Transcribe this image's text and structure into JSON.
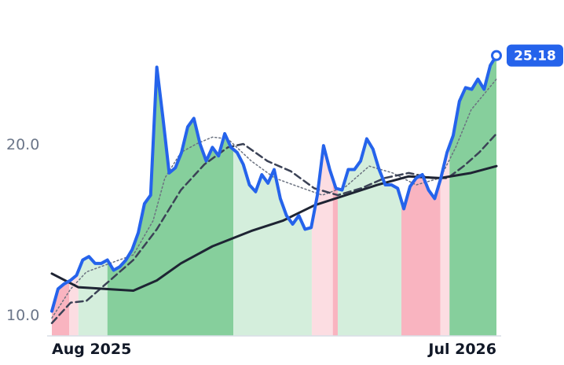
{
  "chart_data": {
    "type": "line",
    "xlim": [
      0,
      72
    ],
    "ylim": [
      8.75,
      26.5
    ],
    "yticks": [
      {
        "value": 10,
        "label": "10.0"
      },
      {
        "value": 20,
        "label": "20.0"
      }
    ],
    "xticks": [
      {
        "value": 0,
        "label": "Aug 2025"
      },
      {
        "value": 72,
        "label": "Jul 2026"
      }
    ],
    "grid": false,
    "regions": [
      {
        "from": 0,
        "to": 2.8,
        "color": "#f9b4c0"
      },
      {
        "from": 2.8,
        "to": 4.3,
        "color": "#fcdde2"
      },
      {
        "from": 4.3,
        "to": 9,
        "color": "#d4eedc"
      },
      {
        "from": 9,
        "to": 29.4,
        "color": "#86cf9c"
      },
      {
        "from": 29.4,
        "to": 42.1,
        "color": "#d4eedc"
      },
      {
        "from": 42.1,
        "to": 45.5,
        "color": "#fcdde2"
      },
      {
        "from": 45.5,
        "to": 46.3,
        "color": "#f9b4c0"
      },
      {
        "from": 46.3,
        "to": 56.6,
        "color": "#d4eedc"
      },
      {
        "from": 56.6,
        "to": 62.9,
        "color": "#f9b4c0"
      },
      {
        "from": 62.9,
        "to": 64.4,
        "color": "#fcdde2"
      },
      {
        "from": 64.4,
        "to": 72,
        "color": "#86cf9c"
      }
    ],
    "series": [
      {
        "color": "#2563eb",
        "style": "solid",
        "width": 4,
        "values": [
          10.2,
          11.5,
          11.8,
          12.0,
          12.3,
          13.2,
          13.4,
          13.0,
          13.0,
          13.2,
          12.6,
          12.8,
          13.2,
          13.8,
          14.8,
          16.5,
          17.0,
          24.5,
          21.5,
          18.3,
          18.6,
          19.5,
          21.0,
          21.5,
          20.0,
          19.0,
          19.8,
          19.3,
          20.6,
          19.8,
          19.5,
          18.8,
          17.6,
          17.2,
          18.2,
          17.7,
          18.5,
          16.8,
          15.8,
          15.3,
          15.8,
          15.0,
          15.1,
          17.0,
          19.9,
          18.5,
          17.4,
          17.3,
          18.5,
          18.5,
          19.0,
          20.3,
          19.7,
          18.5,
          17.6,
          17.6,
          17.4,
          16.2,
          17.5,
          18.0,
          18.2,
          17.3,
          16.8,
          18.0,
          19.5,
          20.5,
          22.5,
          23.3,
          23.2,
          23.8,
          23.2,
          24.6,
          25.18
        ]
      },
      {
        "color": "#1e2433",
        "style": "solid",
        "width": 3,
        "x": [
          0,
          4.3,
          13.2,
          17,
          20.9,
          26,
          32.3,
          37.4,
          42.5,
          47.6,
          52.7,
          57.8,
          62.9,
          67.9,
          72
        ],
        "values": [
          12.4,
          11.6,
          11.4,
          12.0,
          13.0,
          14.0,
          14.9,
          15.5,
          16.4,
          17.0,
          17.6,
          18.1,
          18.0,
          18.3,
          18.7
        ]
      },
      {
        "color": "#3b4256",
        "style": "dashed",
        "width": 2.5,
        "x": [
          0,
          3.05,
          5.6,
          9.4,
          13.2,
          17,
          20.9,
          24.7,
          28.5,
          31,
          34.9,
          38.7,
          42.5,
          46.3,
          50.1,
          53.9,
          57.8,
          61.6,
          64.1,
          66.7,
          69.2,
          72
        ],
        "values": [
          9.5,
          10.7,
          10.8,
          12.0,
          13.2,
          15.0,
          17.3,
          18.8,
          19.8,
          20.0,
          19.0,
          18.4,
          17.4,
          17.0,
          17.4,
          18.0,
          18.3,
          18.0,
          18.0,
          18.7,
          19.5,
          20.6
        ]
      },
      {
        "color": "#6b7280",
        "style": "dotted",
        "width": 1.5,
        "x": [
          0,
          3.05,
          5.6,
          9.4,
          13.2,
          16.4,
          18.3,
          20.9,
          23.4,
          26,
          28.5,
          32.3,
          36.1,
          39.9,
          43.8,
          47.6,
          51.4,
          55.2,
          59,
          62.9,
          65.4,
          67.9,
          72
        ],
        "values": [
          9.8,
          11.5,
          12.5,
          13.0,
          13.5,
          15.5,
          18.0,
          19.5,
          20.0,
          20.4,
          20.3,
          19.0,
          18.0,
          17.5,
          17.0,
          17.5,
          18.7,
          18.3,
          17.6,
          18.0,
          19.8,
          22.0,
          23.8
        ]
      }
    ]
  }
}
